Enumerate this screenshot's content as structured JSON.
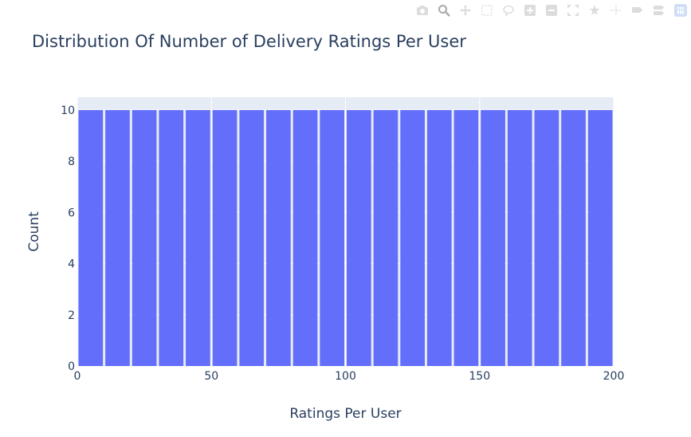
{
  "chart_data": {
    "type": "bar",
    "title": "Distribution Of Number of Delivery Ratings Per User",
    "xlabel": "Ratings Per User",
    "ylabel": "Count",
    "bin_width": 10,
    "bin_start": 0,
    "x": [
      5,
      15,
      25,
      35,
      45,
      55,
      65,
      75,
      85,
      95,
      105,
      115,
      125,
      135,
      145,
      155,
      165,
      175,
      185,
      195
    ],
    "values": [
      10,
      10,
      10,
      10,
      10,
      10,
      10,
      10,
      10,
      10,
      10,
      10,
      10,
      10,
      10,
      10,
      10,
      10,
      10,
      10
    ],
    "xlim": [
      0,
      200
    ],
    "ylim": [
      0,
      10.5
    ],
    "x_ticks": [
      0,
      50,
      100,
      150,
      200
    ],
    "y_ticks": [
      0,
      2,
      4,
      6,
      8,
      10
    ],
    "grid": true,
    "legend": "none",
    "bar_color": "#636efa",
    "plot_bg": "#e5ecf6",
    "grid_color": "#ffffff",
    "text_color": "#2a3f5f"
  },
  "modebar": {
    "buttons": [
      "camera-icon",
      "zoom-icon",
      "pan-icon",
      "box-select-icon",
      "lasso-select-icon",
      "zoom-in-icon",
      "zoom-out-icon",
      "autoscale-icon",
      "reset-axes-icon",
      "spike-lines-icon",
      "hover-closest-icon",
      "hover-compare-icon",
      "plotly-logo-icon"
    ]
  }
}
